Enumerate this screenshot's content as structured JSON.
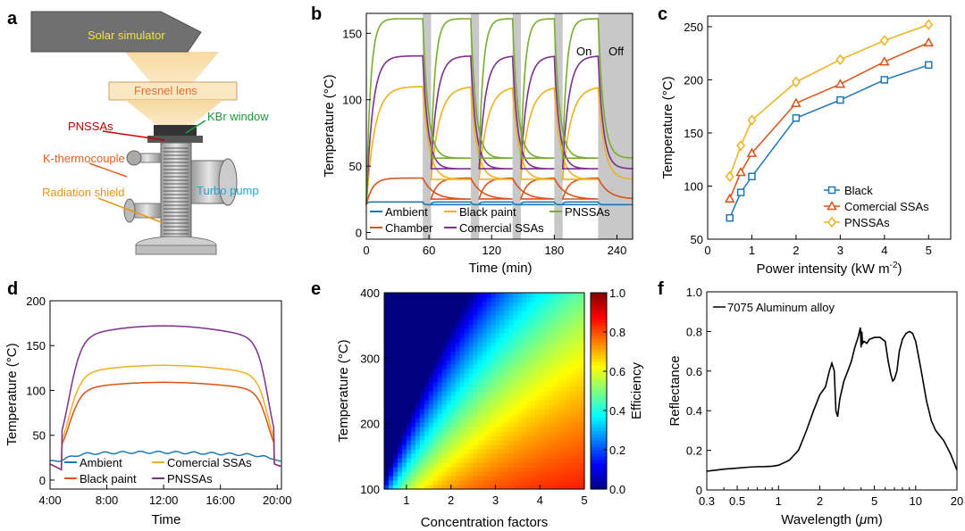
{
  "colors": {
    "blue": "#1f77b4",
    "orange": "#d95319",
    "yellow": "#edb120",
    "purple": "#7e2f8e",
    "green": "#77ac30",
    "black": "#000000",
    "gray": "#cccccc"
  },
  "panels": {
    "a": "a",
    "b": "b",
    "c": "c",
    "d": "d",
    "e": "e",
    "f": "f"
  },
  "diagram": {
    "solar_simulator": "Solar simulator",
    "fresnel_lens": "Fresnel lens",
    "pnssas": "PNSSAs",
    "kbr_window": "KBr window",
    "k_thermocouple": "K-thermocouple",
    "radiation_shield": "Radiation shield",
    "turbo_pump": "Turbo pump"
  },
  "chart_data": [
    {
      "id": "b",
      "type": "line",
      "xlabel": "Time (min)",
      "ylabel": "Temperature (°C)",
      "xlim": [
        0,
        255
      ],
      "ylim": [
        -5,
        165
      ],
      "xticks": [
        0,
        60,
        120,
        180,
        240
      ],
      "yticks": [
        0,
        50,
        100,
        150
      ],
      "off_intervals": [
        [
          54,
          62
        ],
        [
          100,
          108
        ],
        [
          140,
          148
        ],
        [
          180,
          188
        ],
        [
          222,
          255
        ]
      ],
      "annotations": {
        "on": "On",
        "off": "Off"
      },
      "cycles": [
        [
          0,
          54,
          100
        ],
        [
          62,
          100,
          140
        ],
        [
          108,
          140,
          180
        ],
        [
          148,
          180,
          222
        ],
        [
          188,
          222,
          255
        ]
      ],
      "series": [
        {
          "name": "Ambient",
          "color": "#1f77b4",
          "ss_on": 23,
          "ss_off": 21,
          "amb": 21,
          "tau_on": 1,
          "tau_off": 1,
          "start": 21
        },
        {
          "name": "Chamber",
          "color": "#d95319",
          "ss_on": 41,
          "ss_off": 25,
          "amb": 21,
          "tau_on": 6,
          "tau_off": 10,
          "start": 21
        },
        {
          "name": "Black paint",
          "color": "#edb120",
          "ss_on": 110,
          "ss_off": 40,
          "amb": 21,
          "tau_on": 8,
          "tau_off": 6,
          "start": 21
        },
        {
          "name": "Comercial SSAs",
          "color": "#7e2f8e",
          "ss_on": 133,
          "ss_off": 48,
          "amb": 21,
          "tau_on": 6,
          "tau_off": 5,
          "start": 21
        },
        {
          "name": "PNSSAs",
          "color": "#77ac30",
          "ss_on": 161,
          "ss_off": 56,
          "amb": 21,
          "tau_on": 4,
          "tau_off": 5,
          "start": 21
        }
      ]
    },
    {
      "id": "c",
      "type": "line",
      "xlabel": "Power intensity (kW m",
      "xlabel_sup": "-2",
      "xlabel_end": ")",
      "ylabel": "Temperature (°C)",
      "xlim": [
        0,
        5.5
      ],
      "ylim": [
        50,
        260
      ],
      "xticks": [
        0,
        1,
        2,
        3,
        4,
        5
      ],
      "yticks": [
        50,
        100,
        150,
        200,
        250
      ],
      "x": [
        0.5,
        0.75,
        1,
        2,
        3,
        4,
        5
      ],
      "series": [
        {
          "name": "Black",
          "color": "#1f77b4",
          "marker": "square",
          "values": [
            70,
            94,
            109,
            164,
            181,
            200,
            214
          ]
        },
        {
          "name": "Comercial SSAs",
          "color": "#d95319",
          "marker": "triangle",
          "values": [
            88,
            113,
            131,
            178,
            196,
            217,
            235
          ]
        },
        {
          "name": "PNSSAs",
          "color": "#edb120",
          "marker": "diamond",
          "values": [
            109,
            138,
            162,
            198,
            219,
            237,
            252
          ]
        }
      ]
    },
    {
      "id": "d",
      "type": "line",
      "xlabel": "Time",
      "ylabel": "Temperature (°C)",
      "xlim": [
        4,
        20.3
      ],
      "ylim": [
        -10,
        200
      ],
      "xticks": [
        4,
        8,
        12,
        16,
        20
      ],
      "xticklabels": [
        "4:00",
        "8:00",
        "12:00",
        "16:00",
        "20:00"
      ],
      "yticks": [
        0,
        50,
        100,
        150,
        200
      ],
      "series": [
        {
          "name": "Ambient",
          "color": "#1f77b4",
          "kind": "ambient",
          "peak": 31
        },
        {
          "name": "Black paint",
          "color": "#d95319",
          "kind": "bell",
          "peak": 109
        },
        {
          "name": "Comercial SSAs",
          "color": "#edb120",
          "kind": "bell",
          "peak": 128
        },
        {
          "name": "PNSSAs",
          "color": "#7e2f8e",
          "kind": "bell",
          "peak": 172
        }
      ]
    },
    {
      "id": "e",
      "type": "heatmap",
      "xlabel": "Concentration factors",
      "ylabel": "Temperature (°C)",
      "xlim": [
        0.5,
        5
      ],
      "ylim": [
        100,
        400
      ],
      "xticks": [
        1,
        2,
        3,
        4,
        5
      ],
      "yticks": [
        100,
        200,
        300,
        400
      ],
      "colorbar": {
        "label": "Efficiency",
        "ticks": [
          0.0,
          0.2,
          0.4,
          0.6,
          0.8,
          1.0
        ],
        "ticklabels": [
          "0.0",
          "0.2",
          "0.4",
          "0.6",
          "0.8",
          "1.0"
        ]
      }
    },
    {
      "id": "f",
      "type": "line",
      "xlabel": "Wavelength (",
      "xlabel_mu": "μ",
      "xlabel_end": "m)",
      "ylabel": "Reflectance",
      "xscale": "log",
      "xlim": [
        0.3,
        20
      ],
      "ylim": [
        0,
        1.0
      ],
      "xticks": [
        0.3,
        0.5,
        1,
        2,
        5,
        10,
        20
      ],
      "xticklabels": [
        "0.3",
        "0.5",
        "1",
        "2",
        "5",
        "10",
        "20"
      ],
      "yticks": [
        0,
        0.2,
        0.4,
        0.6,
        0.8,
        1.0
      ],
      "yticklabels": [
        "0",
        "0.2",
        "0.4",
        "0.6",
        "0.8",
        "1.0"
      ],
      "series": [
        {
          "name": "7075 Aluminum alloy",
          "color": "#000000",
          "x": [
            0.3,
            0.35,
            0.4,
            0.5,
            0.6,
            0.7,
            0.8,
            0.9,
            1.0,
            1.2,
            1.4,
            1.6,
            1.8,
            2.0,
            2.2,
            2.35,
            2.45,
            2.55,
            2.62,
            2.7,
            2.8,
            3.0,
            3.2,
            3.4,
            3.6,
            3.8,
            3.95,
            4.0,
            4.05,
            4.1,
            4.2,
            4.4,
            4.6,
            5.0,
            5.5,
            6.0,
            6.3,
            6.6,
            6.8,
            7.0,
            7.3,
            7.6,
            8.0,
            8.5,
            9.0,
            9.5,
            10,
            11,
            12,
            13,
            14,
            16,
            18,
            20
          ],
          "y": [
            0.095,
            0.1,
            0.105,
            0.11,
            0.115,
            0.117,
            0.118,
            0.12,
            0.125,
            0.15,
            0.2,
            0.3,
            0.4,
            0.48,
            0.52,
            0.6,
            0.64,
            0.6,
            0.4,
            0.37,
            0.46,
            0.55,
            0.6,
            0.65,
            0.72,
            0.77,
            0.82,
            0.72,
            0.8,
            0.74,
            0.75,
            0.74,
            0.76,
            0.77,
            0.77,
            0.75,
            0.65,
            0.58,
            0.55,
            0.56,
            0.6,
            0.7,
            0.76,
            0.79,
            0.8,
            0.79,
            0.75,
            0.6,
            0.45,
            0.35,
            0.3,
            0.25,
            0.18,
            0.1
          ]
        }
      ]
    }
  ]
}
